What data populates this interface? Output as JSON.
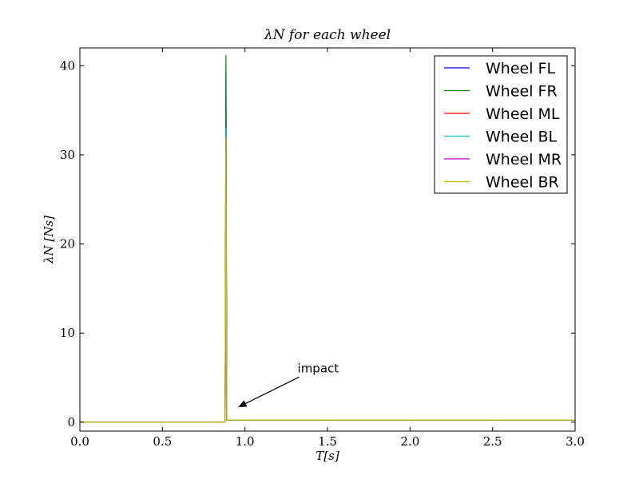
{
  "chart_data": {
    "type": "line",
    "title": "λN for each wheel",
    "xlabel": "T[s]",
    "ylabel": "λN [Ns]",
    "xlim": [
      0.0,
      3.0
    ],
    "ylim": [
      -1,
      42
    ],
    "xticks": [
      0.0,
      0.5,
      1.0,
      1.5,
      2.0,
      2.5,
      3.0
    ],
    "xtick_labels": [
      "0.0",
      "0.5",
      "1.0",
      "1.5",
      "2.0",
      "2.5",
      "3.0"
    ],
    "yticks": [
      0,
      10,
      20,
      30,
      40
    ],
    "ytick_labels": [
      "0",
      "10",
      "20",
      "30",
      "40"
    ],
    "grid": false,
    "legend_position": "top-right",
    "series": [
      {
        "name": "Wheel FL",
        "color": "#0000ff",
        "x": [
          0.0,
          0.88,
          0.885,
          0.89,
          3.0
        ],
        "y": [
          0.0,
          0.0,
          39.3,
          0.25,
          0.25
        ]
      },
      {
        "name": "Wheel FR",
        "color": "#008000",
        "x": [
          0.0,
          0.88,
          0.885,
          0.89,
          3.0
        ],
        "y": [
          0.0,
          0.0,
          41.2,
          0.25,
          0.25
        ]
      },
      {
        "name": "Wheel ML",
        "color": "#ff0000",
        "x": [
          0.0,
          0.88,
          0.885,
          0.89,
          3.0
        ],
        "y": [
          0.0,
          0.0,
          32.0,
          0.25,
          0.25
        ]
      },
      {
        "name": "Wheel BL",
        "color": "#00bfbf",
        "x": [
          0.0,
          0.88,
          0.885,
          0.89,
          3.0
        ],
        "y": [
          0.0,
          0.0,
          33.0,
          0.25,
          0.25
        ]
      },
      {
        "name": "Wheel MR",
        "color": "#bf00bf",
        "x": [
          0.0,
          0.88,
          0.885,
          0.89,
          3.0
        ],
        "y": [
          0.0,
          0.0,
          32.0,
          0.25,
          0.25
        ]
      },
      {
        "name": "Wheel BR",
        "color": "#bfbf00",
        "x": [
          0.0,
          0.88,
          0.885,
          0.89,
          3.0
        ],
        "y": [
          0.0,
          0.0,
          32.0,
          0.25,
          0.25
        ]
      }
    ],
    "annotations": [
      {
        "text": "impact",
        "xy": [
          0.96,
          1.7
        ],
        "xytext": [
          1.28,
          5.6
        ]
      }
    ]
  }
}
